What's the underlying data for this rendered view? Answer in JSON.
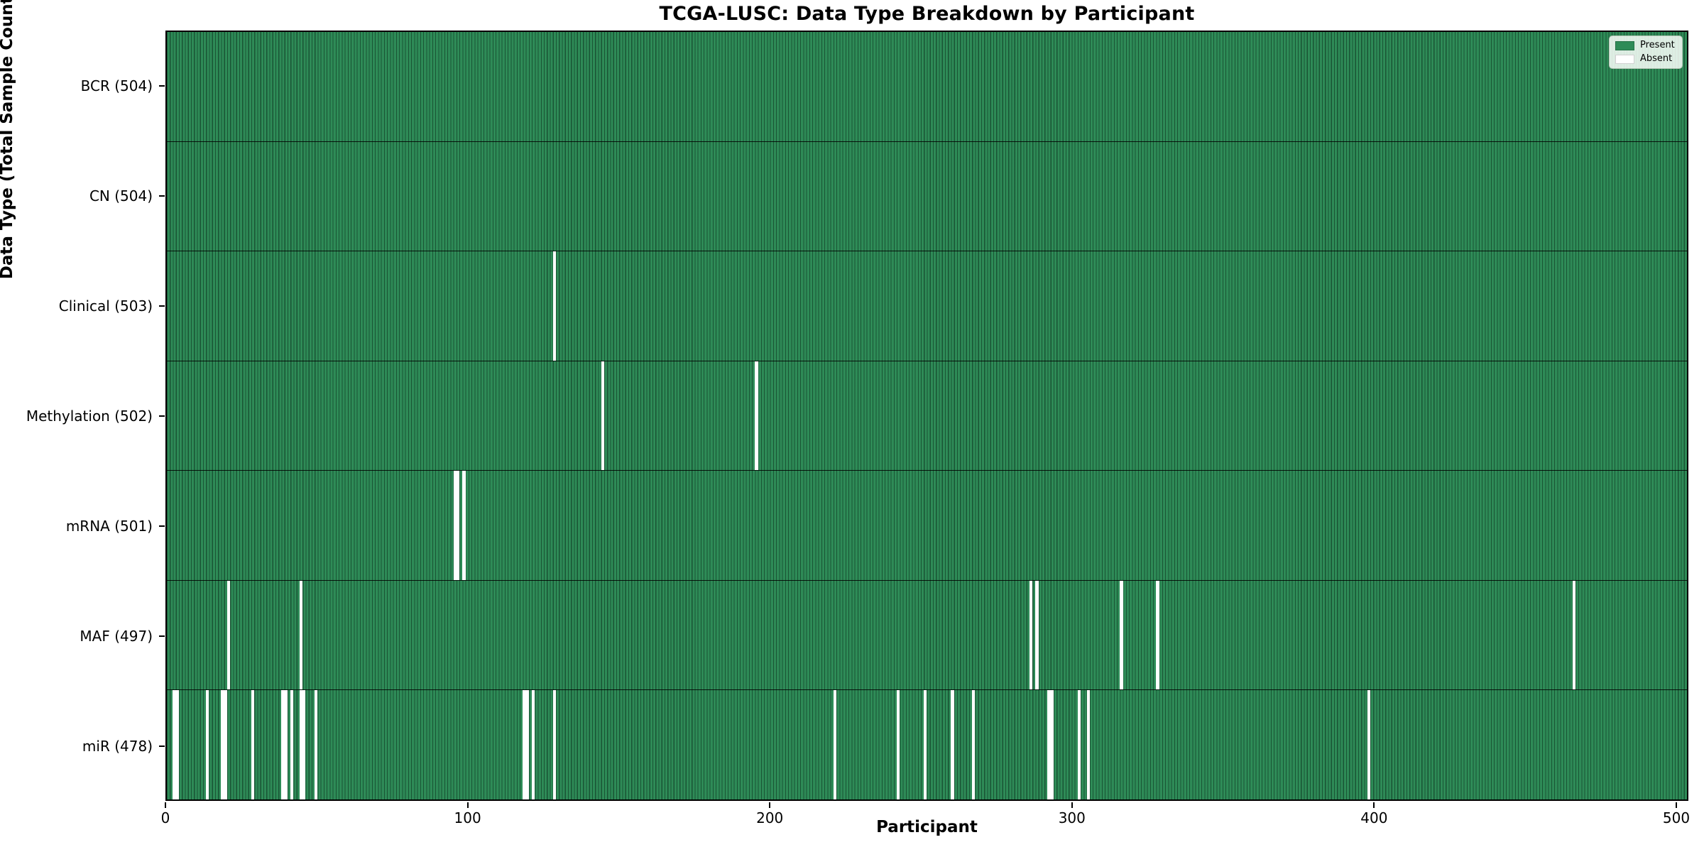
{
  "chart_data": {
    "type": "heatmap",
    "title": "TCGA-LUSC: Data Type Breakdown by Participant",
    "xlabel": "Participant",
    "ylabel": "Data Type (Total Sample Count)",
    "n_participants": 504,
    "x_range": [
      0,
      504
    ],
    "x_ticks": [
      0,
      100,
      200,
      300,
      400,
      500
    ],
    "grid": false,
    "colors": {
      "present": "#2e8b57",
      "absent": "#ffffff",
      "cell_edge": "rgba(8,38,24,0.55)",
      "row_separator": "#000000"
    },
    "legend": {
      "position": "upper right",
      "entries": [
        {
          "label": "Present",
          "color": "#2e8b57"
        },
        {
          "label": "Absent",
          "color": "#ffffff"
        }
      ]
    },
    "rows": [
      {
        "label": "BCR",
        "count": 504,
        "absent_participants": []
      },
      {
        "label": "CN",
        "count": 504,
        "absent_participants": []
      },
      {
        "label": "Clinical",
        "count": 503,
        "absent_participants": [
          128
        ]
      },
      {
        "label": "Methylation",
        "count": 502,
        "absent_participants": [
          144,
          195
        ]
      },
      {
        "label": "mRNA",
        "count": 501,
        "absent_participants": [
          95,
          96,
          98
        ]
      },
      {
        "label": "MAF",
        "count": 497,
        "absent_participants": [
          20,
          44,
          286,
          288,
          316,
          328,
          466
        ]
      },
      {
        "label": "miR",
        "count": 478,
        "absent_participants": [
          2,
          3,
          13,
          18,
          19,
          28,
          38,
          39,
          41,
          44,
          45,
          49,
          118,
          119,
          121,
          128,
          221,
          242,
          251,
          260,
          267,
          292,
          293,
          302,
          305,
          398
        ]
      }
    ]
  }
}
